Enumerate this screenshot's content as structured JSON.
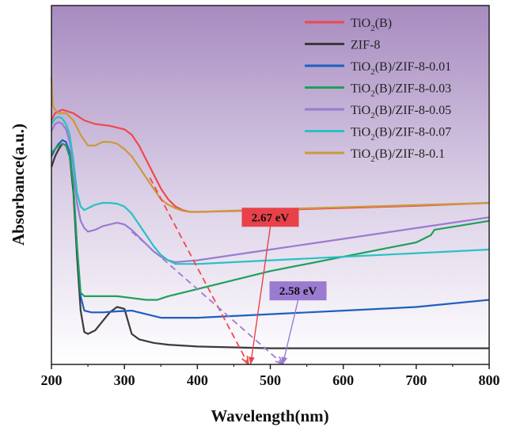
{
  "chart_data": {
    "type": "line",
    "title": "",
    "xlabel": "Wavelength(nm)",
    "ylabel": "Absorbance(a.u.)",
    "xlim": [
      200,
      800
    ],
    "ylim": [
      0,
      1
    ],
    "xticks": [
      "200",
      "300",
      "400",
      "500",
      "600",
      "700",
      "800"
    ],
    "grid": false,
    "legend_position": "top-right",
    "background": "purple-gradient",
    "series": [
      {
        "name": "TiO2(B)",
        "label_main": "TiO",
        "label_sub": "2",
        "label_rest": "(B)",
        "color": "#f0484a",
        "x": [
          200,
          205,
          215,
          230,
          245,
          260,
          280,
          300,
          310,
          320,
          330,
          340,
          350,
          360,
          370,
          380,
          390,
          400,
          500,
          600,
          700,
          800
        ],
        "y": [
          0.68,
          0.7,
          0.71,
          0.7,
          0.68,
          0.67,
          0.665,
          0.655,
          0.64,
          0.61,
          0.57,
          0.53,
          0.49,
          0.46,
          0.44,
          0.43,
          0.425,
          0.425,
          0.43,
          0.436,
          0.442,
          0.45
        ]
      },
      {
        "name": "ZIF-8",
        "label_main": "ZIF-8",
        "label_sub": "",
        "label_rest": "",
        "color": "#3a3a3a",
        "x": [
          200,
          205,
          210,
          215,
          220,
          225,
          230,
          235,
          240,
          245,
          250,
          260,
          270,
          280,
          290,
          300,
          305,
          310,
          320,
          340,
          360,
          400,
          500,
          600,
          700,
          800
        ],
        "y": [
          0.55,
          0.58,
          0.6,
          0.615,
          0.61,
          0.58,
          0.48,
          0.3,
          0.15,
          0.09,
          0.085,
          0.095,
          0.12,
          0.145,
          0.16,
          0.155,
          0.12,
          0.085,
          0.07,
          0.06,
          0.055,
          0.05,
          0.045,
          0.045,
          0.045,
          0.045
        ]
      },
      {
        "name": "TiO2(B)/ZIF-8-0.01",
        "label_main": "TiO",
        "label_sub": "2",
        "label_rest": "(B)/ZIF-8-0.01",
        "color": "#1f5fc0",
        "x": [
          200,
          205,
          210,
          215,
          220,
          225,
          230,
          235,
          240,
          245,
          255,
          270,
          290,
          310,
          330,
          350,
          400,
          500,
          600,
          700,
          800
        ],
        "y": [
          0.58,
          0.6,
          0.615,
          0.625,
          0.62,
          0.59,
          0.5,
          0.33,
          0.19,
          0.15,
          0.145,
          0.145,
          0.148,
          0.15,
          0.14,
          0.13,
          0.13,
          0.14,
          0.15,
          0.16,
          0.18
        ]
      },
      {
        "name": "TiO2(B)/ZIF-8-0.03",
        "label_main": "TiO",
        "label_sub": "2",
        "label_rest": "(B)/ZIF-8-0.03",
        "color": "#1fa05a",
        "x": [
          200,
          205,
          210,
          215,
          220,
          225,
          230,
          235,
          240,
          245,
          255,
          270,
          290,
          310,
          330,
          345,
          360,
          400,
          500,
          600,
          700,
          720,
          725,
          800
        ],
        "y": [
          0.59,
          0.6,
          0.61,
          0.615,
          0.61,
          0.58,
          0.5,
          0.33,
          0.2,
          0.19,
          0.19,
          0.19,
          0.19,
          0.185,
          0.18,
          0.18,
          0.19,
          0.21,
          0.26,
          0.3,
          0.34,
          0.36,
          0.375,
          0.4
        ]
      },
      {
        "name": "TiO2(B)/ZIF-8-0.05",
        "label_main": "TiO",
        "label_sub": "2",
        "label_rest": "(B)/ZIF-8-0.05",
        "color": "#9a7bd0",
        "x": [
          200,
          205,
          210,
          215,
          220,
          225,
          230,
          235,
          240,
          245,
          250,
          260,
          270,
          280,
          290,
          300,
          310,
          320,
          330,
          340,
          350,
          360,
          370,
          400,
          500,
          600,
          700,
          800
        ],
        "y": [
          0.65,
          0.67,
          0.675,
          0.67,
          0.655,
          0.62,
          0.55,
          0.45,
          0.4,
          0.38,
          0.37,
          0.375,
          0.385,
          0.39,
          0.395,
          0.39,
          0.375,
          0.355,
          0.335,
          0.315,
          0.3,
          0.29,
          0.285,
          0.29,
          0.32,
          0.35,
          0.38,
          0.41
        ]
      },
      {
        "name": "TiO2(B)/ZIF-8-0.07",
        "label_main": "TiO",
        "label_sub": "2",
        "label_rest": "(B)/ZIF-8-0.07",
        "color": "#29c1c4",
        "x": [
          200,
          205,
          210,
          215,
          220,
          225,
          230,
          235,
          240,
          245,
          250,
          260,
          270,
          280,
          290,
          300,
          310,
          320,
          330,
          340,
          350,
          360,
          370,
          380,
          400,
          500,
          600,
          700,
          800
        ],
        "y": [
          0.67,
          0.685,
          0.69,
          0.685,
          0.67,
          0.64,
          0.57,
          0.48,
          0.44,
          0.43,
          0.435,
          0.445,
          0.45,
          0.45,
          0.448,
          0.44,
          0.42,
          0.39,
          0.36,
          0.33,
          0.305,
          0.29,
          0.28,
          0.28,
          0.28,
          0.29,
          0.3,
          0.31,
          0.32
        ]
      },
      {
        "name": "TiO2(B)/ZIF-8-0.1",
        "label_main": "TiO",
        "label_sub": "2",
        "label_rest": "(B)/ZIF-8-0.1",
        "color": "#c99a3c",
        "x": [
          200,
          202,
          205,
          210,
          220,
          230,
          240,
          250,
          260,
          270,
          280,
          290,
          300,
          310,
          320,
          330,
          340,
          350,
          360,
          370,
          380,
          390,
          400,
          500,
          600,
          700,
          800
        ],
        "y": [
          0.8,
          0.72,
          0.71,
          0.7,
          0.7,
          0.68,
          0.64,
          0.61,
          0.61,
          0.62,
          0.62,
          0.615,
          0.6,
          0.58,
          0.55,
          0.52,
          0.49,
          0.46,
          0.445,
          0.435,
          0.428,
          0.425,
          0.425,
          0.432,
          0.438,
          0.444,
          0.45
        ]
      }
    ],
    "tangent_lines": [
      {
        "series": "TiO2(B)",
        "color": "#f0484a",
        "x": [
          335,
          470
        ],
        "y": [
          0.52,
          0.0
        ]
      },
      {
        "series": "TiO2(B)/ZIF-8-0.05",
        "color": "#9a7bd0",
        "x": [
          310,
          518
        ],
        "y": [
          0.37,
          0.0
        ]
      }
    ],
    "annotations": [
      {
        "text": "2.67 eV",
        "color": "#e8414a",
        "x": 500,
        "y": 0.41,
        "arrow_to": [
          473,
          0.0
        ]
      },
      {
        "text": "2.58 eV",
        "color": "#9a7bd0",
        "x": 538,
        "y": 0.205,
        "arrow_to": [
          517,
          0.0
        ]
      }
    ]
  }
}
